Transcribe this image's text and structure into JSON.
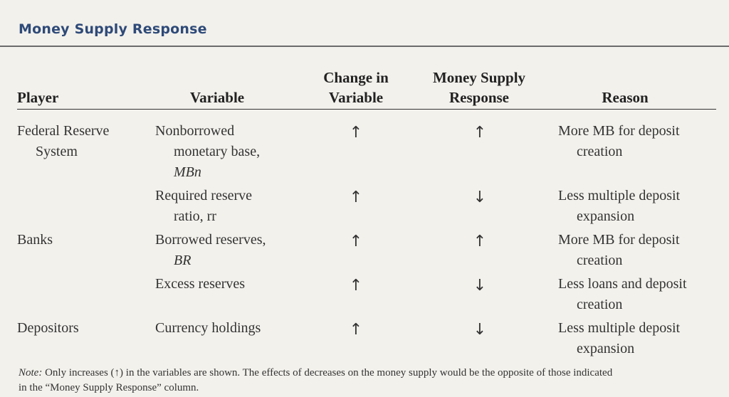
{
  "title": "Money Supply Response",
  "headers": {
    "player": "Player",
    "variable": "Variable",
    "change_l1": "Change in",
    "change_l2": "Variable",
    "response_l1": "Money Supply",
    "response_l2": "Response",
    "reason": "Reason"
  },
  "rows": [
    {
      "player_l1": "Federal Reserve",
      "player_l2": "System",
      "variable_l1": "Nonborrowed",
      "variable_l2": "monetary base,",
      "variable_l3": "MBn",
      "change": "↑",
      "response": "↑",
      "reason_l1": "More MB for deposit",
      "reason_l2": "creation"
    },
    {
      "player_l1": "",
      "variable_l1": "Required reserve",
      "variable_l2": "ratio, rr",
      "change": "↑",
      "response": "↓",
      "reason_l1": "Less multiple deposit",
      "reason_l2": "expansion"
    },
    {
      "player_l1": "Banks",
      "variable_l1": "Borrowed reserves,",
      "variable_l2": "BR",
      "change": "↑",
      "response": "↑",
      "reason_l1": "More MB for deposit",
      "reason_l2": "creation"
    },
    {
      "player_l1": "",
      "variable_l1": "Excess reserves",
      "change": "↑",
      "response": "↓",
      "reason_l1": "Less loans and deposit",
      "reason_l2": "creation"
    },
    {
      "player_l1": "Depositors",
      "variable_l1": "Currency holdings",
      "change": "↑",
      "response": "↓",
      "reason_l1": "Less multiple deposit",
      "reason_l2": "expansion"
    }
  ],
  "note": {
    "label": "Note:",
    "line1": "Only increases (↑) in the variables are shown. The effects of decreases on the money supply would be the opposite of those indicated",
    "line2": "in the “Money Supply Response” column."
  }
}
